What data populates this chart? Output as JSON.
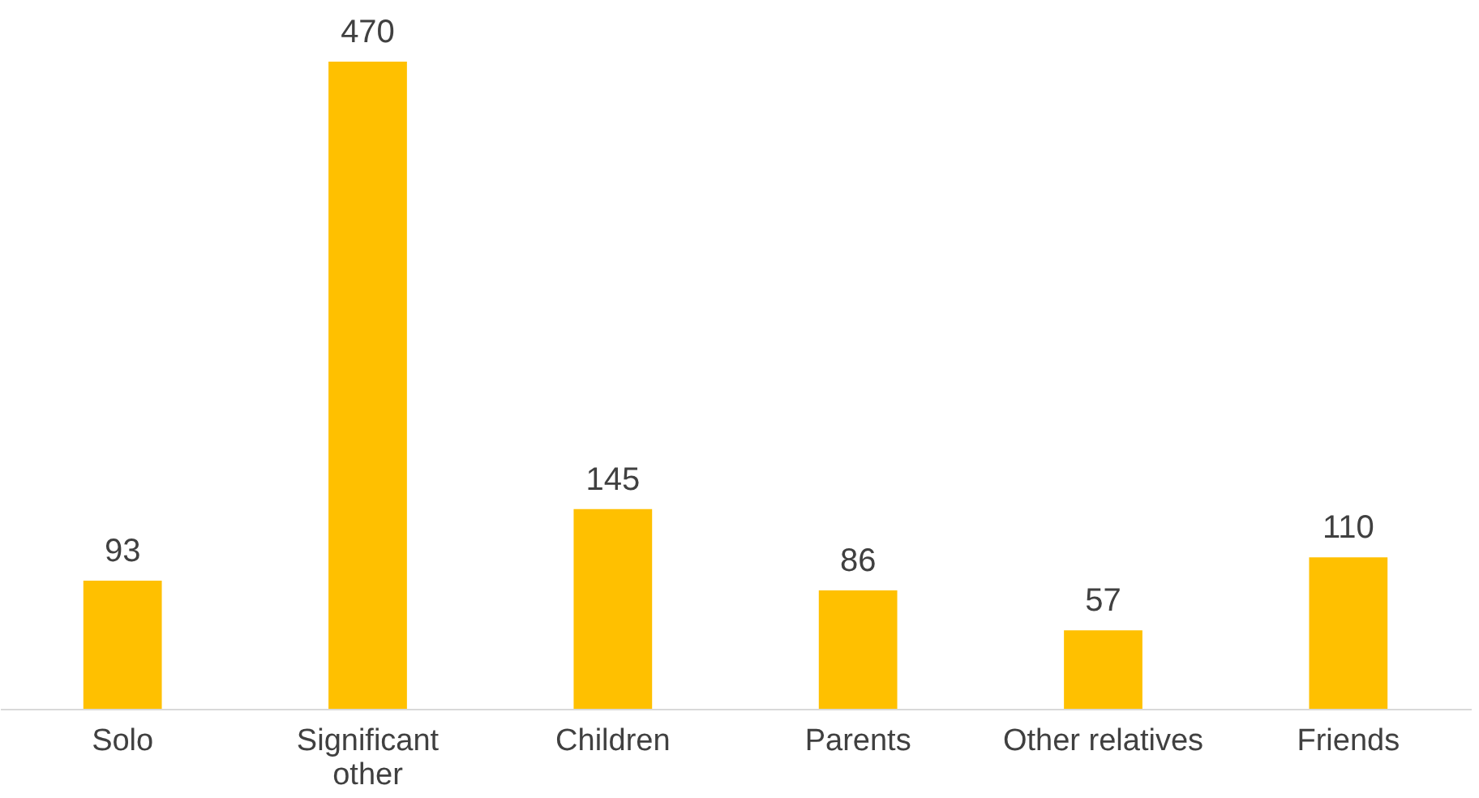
{
  "chart_data": {
    "type": "bar",
    "categories": [
      "Solo",
      "Significant other",
      "Children",
      "Parents",
      "Other relatives",
      "Friends"
    ],
    "values": [
      93,
      470,
      145,
      86,
      57,
      110
    ],
    "color": "#ffc000",
    "data_labels": true
  }
}
